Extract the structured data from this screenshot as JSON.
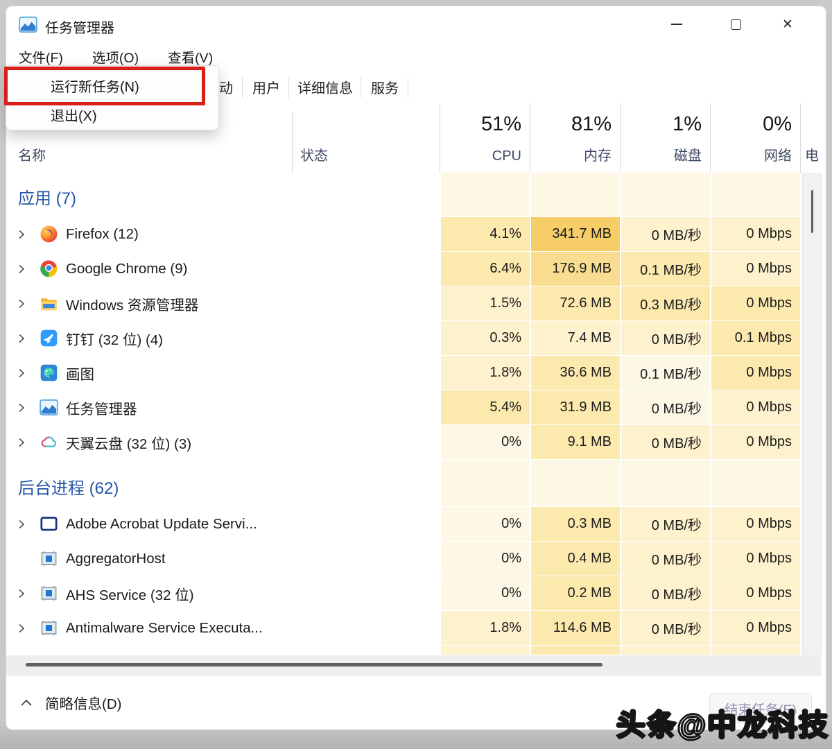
{
  "window": {
    "title": "任务管理器"
  },
  "window_controls": [
    {
      "name": "minimize"
    },
    {
      "name": "maximize"
    },
    {
      "name": "close"
    }
  ],
  "menubar": {
    "items": [
      {
        "label": "文件(F)"
      },
      {
        "label": "选项(O)"
      },
      {
        "label": "查看(V)"
      }
    ]
  },
  "file_menu": {
    "items": [
      {
        "label": "运行新任务(N)",
        "annotated": true
      },
      {
        "label": "退出(X)",
        "annotated": false
      }
    ]
  },
  "tabs": {
    "visible": [
      {
        "label": "动"
      },
      {
        "label": "用户"
      },
      {
        "label": "详细信息"
      },
      {
        "label": "服务"
      }
    ]
  },
  "columns": {
    "name": "名称",
    "status": "状态",
    "usage": [
      {
        "key": "cpu",
        "percent": "51%",
        "label": "CPU"
      },
      {
        "key": "mem",
        "percent": "81%",
        "label": "内存"
      },
      {
        "key": "disk",
        "percent": "1%",
        "label": "磁盘"
      },
      {
        "key": "net",
        "percent": "0%",
        "label": "网络"
      }
    ],
    "partial_last": "电"
  },
  "sections": [
    {
      "title": "应用 (7)",
      "rows": [
        {
          "name": "Firefox (12)",
          "icon": "firefox",
          "chevron": true,
          "cpu": "4.1%",
          "mem": "341.7 MB",
          "disk": "0 MB/秒",
          "net": "0 Mbps",
          "heat": {
            "cpu": 2,
            "mem": 4,
            "disk": 1,
            "net": 1
          }
        },
        {
          "name": "Google Chrome (9)",
          "icon": "chrome",
          "chevron": true,
          "cpu": "6.4%",
          "mem": "176.9 MB",
          "disk": "0.1 MB/秒",
          "net": "0 Mbps",
          "heat": {
            "cpu": 2,
            "mem": 3,
            "disk": 2,
            "net": 1
          }
        },
        {
          "name": "Windows 资源管理器",
          "icon": "folder",
          "chevron": true,
          "cpu": "1.5%",
          "mem": "72.6 MB",
          "disk": "0.3 MB/秒",
          "net": "0 Mbps",
          "heat": {
            "cpu": 1,
            "mem": 2,
            "disk": 2,
            "net": 2
          }
        },
        {
          "name": "钉钉 (32 位) (4)",
          "icon": "dingtalk",
          "chevron": true,
          "cpu": "0.3%",
          "mem": "7.4 MB",
          "disk": "0 MB/秒",
          "net": "0.1 Mbps",
          "heat": {
            "cpu": 1,
            "mem": 1,
            "disk": 1,
            "net": 2
          }
        },
        {
          "name": "画图",
          "icon": "paint",
          "chevron": true,
          "cpu": "1.8%",
          "mem": "36.6 MB",
          "disk": "0.1 MB/秒",
          "net": "0 Mbps",
          "heat": {
            "cpu": 1,
            "mem": 2,
            "disk": 0,
            "net": 2
          }
        },
        {
          "name": "任务管理器",
          "icon": "taskmgr",
          "chevron": true,
          "cpu": "5.4%",
          "mem": "31.9 MB",
          "disk": "0 MB/秒",
          "net": "0 Mbps",
          "heat": {
            "cpu": 2,
            "mem": 2,
            "disk": 0,
            "net": 1
          }
        },
        {
          "name": "天翼云盘 (32 位) (3)",
          "icon": "cloud",
          "chevron": true,
          "cpu": "0%",
          "mem": "9.1 MB",
          "disk": "0 MB/秒",
          "net": "0 Mbps",
          "heat": {
            "cpu": 0,
            "mem": 2,
            "disk": 1,
            "net": 1
          }
        }
      ]
    },
    {
      "title": "后台进程 (62)",
      "rows": [
        {
          "name": "Adobe Acrobat Update Servi...",
          "icon": "window",
          "chevron": true,
          "cpu": "0%",
          "mem": "0.3 MB",
          "disk": "0 MB/秒",
          "net": "0 Mbps",
          "heat": {
            "cpu": 0,
            "mem": 2,
            "disk": 1,
            "net": 1
          }
        },
        {
          "name": "AggregatorHost",
          "icon": "service",
          "chevron": false,
          "cpu": "0%",
          "mem": "0.4 MB",
          "disk": "0 MB/秒",
          "net": "0 Mbps",
          "heat": {
            "cpu": 0,
            "mem": 2,
            "disk": 1,
            "net": 1
          }
        },
        {
          "name": "AHS Service (32 位)",
          "icon": "service",
          "chevron": true,
          "cpu": "0%",
          "mem": "0.2 MB",
          "disk": "0 MB/秒",
          "net": "0 Mbps",
          "heat": {
            "cpu": 0,
            "mem": 2,
            "disk": 1,
            "net": 1
          }
        },
        {
          "name": "Antimalware Service Executa...",
          "icon": "service",
          "chevron": true,
          "cpu": "1.8%",
          "mem": "114.6 MB",
          "disk": "0 MB/秒",
          "net": "0 Mbps",
          "heat": {
            "cpu": 1,
            "mem": 2,
            "disk": 1,
            "net": 1
          }
        }
      ]
    }
  ],
  "partial_row": {
    "heat": {
      "cpu": 1,
      "mem": 2,
      "disk": 1,
      "net": 1
    }
  },
  "footer": {
    "toggle": "简略信息(D)",
    "end_task": "结束任务(E)"
  },
  "watermark": "头条@中龙科技",
  "colors": {
    "section_blue": "#2456a8",
    "annotation_red": "#da1f18",
    "heat": [
      "#fdf8e6",
      "#fdf2cd",
      "#fbe9ae",
      "#f8dd90",
      "#f6cd66"
    ]
  }
}
